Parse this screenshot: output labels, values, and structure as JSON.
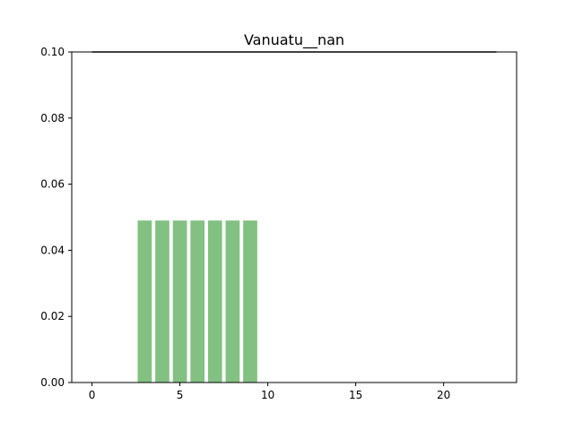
{
  "chart_data": {
    "type": "bar",
    "title": "Vanuatu__nan",
    "xlabel": "",
    "ylabel": "",
    "x": [
      0,
      1,
      2,
      3,
      4,
      5,
      6,
      7,
      8,
      9,
      10,
      11,
      12,
      13,
      14,
      15,
      16,
      17,
      18,
      19,
      20,
      21,
      22,
      23
    ],
    "values": [
      0,
      0,
      0,
      0.049,
      0.049,
      0.049,
      0.049,
      0.049,
      0.049,
      0.049,
      0,
      0,
      0,
      0,
      0,
      0,
      0,
      0,
      0,
      0,
      0,
      0,
      0,
      0
    ],
    "reference_line": {
      "y": 0.1,
      "x_start": 0,
      "x_end": 23
    },
    "xlim": [
      -1.15,
      24.15
    ],
    "ylim": [
      0,
      0.1
    ],
    "xticks": [
      0,
      5,
      10,
      15,
      20
    ],
    "xtick_labels": [
      "0",
      "5",
      "10",
      "15",
      "20"
    ],
    "yticks": [
      0,
      0.02,
      0.04,
      0.06,
      0.08,
      0.1
    ],
    "ytick_labels": [
      "0.00",
      "0.02",
      "0.04",
      "0.06",
      "0.08",
      "0.10"
    ],
    "grid": false,
    "legend": "none",
    "colors": {
      "bar": "#82c182",
      "line": "#808080",
      "axes": "#000000"
    }
  }
}
